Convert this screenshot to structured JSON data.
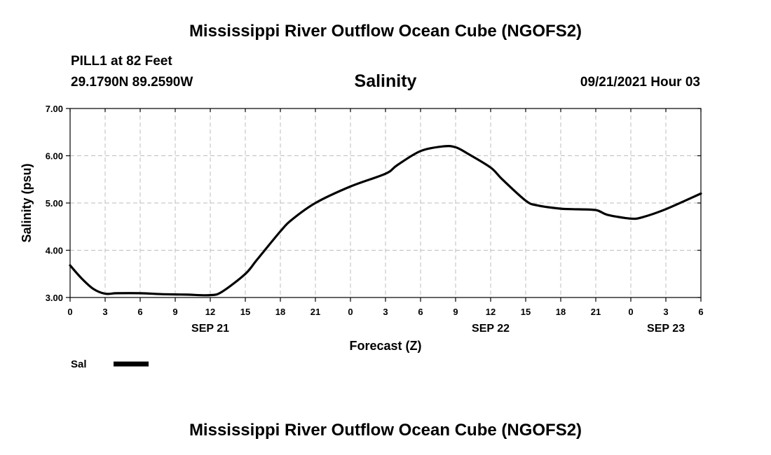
{
  "header": {
    "title": "Mississippi River Outflow Ocean Cube (NGOFS2)",
    "station": "PILL1 at 82 Feet",
    "coords": "29.1790N  89.2590W",
    "date": "09/21/2021 Hour 03"
  },
  "footer": {
    "title": "Mississippi River Outflow Ocean Cube (NGOFS2)"
  },
  "chart_data": {
    "type": "line",
    "title": "Salinity",
    "xlabel": "Forecast (Z)",
    "ylabel": "Salinity (psu)",
    "xlim": [
      0,
      54
    ],
    "ylim": [
      3.0,
      7.0
    ],
    "grid": true,
    "yticks": [
      3.0,
      4.0,
      5.0,
      6.0,
      7.0
    ],
    "ytick_labels": [
      "3.00",
      "4.00",
      "5.00",
      "6.00",
      "7.00"
    ],
    "xticks": [
      0,
      3,
      6,
      9,
      12,
      15,
      18,
      21,
      24,
      27,
      30,
      33,
      36,
      39,
      42,
      45,
      48,
      51,
      54
    ],
    "xtick_labels": [
      "0",
      "3",
      "6",
      "9",
      "12",
      "15",
      "18",
      "21",
      "0",
      "3",
      "6",
      "9",
      "12",
      "15",
      "18",
      "21",
      "0",
      "3",
      "6"
    ],
    "date_labels": [
      {
        "hour": 12,
        "label": "SEP 21"
      },
      {
        "hour": 36,
        "label": "SEP 22"
      },
      {
        "hour": 51,
        "label": "SEP 23"
      }
    ],
    "legend": {
      "placement": "bottom-left",
      "label": "Sal"
    },
    "series": [
      {
        "name": "Sal",
        "x": [
          0,
          1,
          2,
          3,
          4,
          6,
          8,
          10,
          12,
          13,
          15,
          16,
          18,
          19,
          21,
          24,
          27,
          28,
          30,
          32,
          33,
          34,
          36,
          37,
          39,
          40,
          42,
          43,
          45,
          46,
          48,
          49,
          51,
          54
        ],
        "y": [
          3.68,
          3.4,
          3.18,
          3.08,
          3.09,
          3.09,
          3.07,
          3.06,
          3.05,
          3.12,
          3.5,
          3.8,
          4.4,
          4.65,
          5.0,
          5.35,
          5.62,
          5.8,
          6.1,
          6.2,
          6.18,
          6.05,
          5.75,
          5.5,
          5.05,
          4.95,
          4.88,
          4.87,
          4.85,
          4.75,
          4.67,
          4.7,
          4.87,
          5.2
        ]
      }
    ]
  }
}
